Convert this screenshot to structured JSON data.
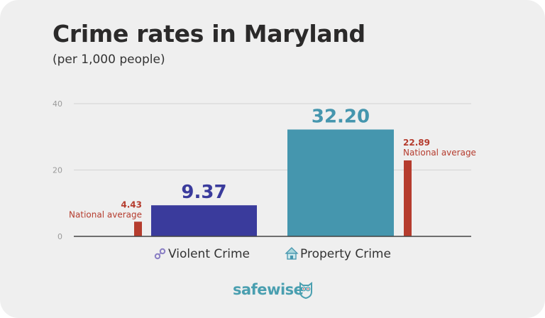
{
  "chart_data": {
    "type": "bar",
    "title": "Crime rates in Maryland",
    "subtitle": "(per 1,000 people)",
    "xlabel": "",
    "ylabel": "",
    "ylim": [
      0,
      40
    ],
    "yticks": [
      0,
      20,
      40
    ],
    "ytick_labels": [
      "0",
      "20",
      "40"
    ],
    "grid": true,
    "categories": [
      "Violent Crime",
      "Property Crime"
    ],
    "category_icons": [
      "handcuffs-icon",
      "house-icon"
    ],
    "series": [
      {
        "name": "Maryland",
        "values": [
          9.37,
          32.2
        ],
        "value_labels": [
          "9.37",
          "32.20"
        ],
        "colors": [
          "#3a3b9c",
          "#4596ae"
        ]
      },
      {
        "name": "National average",
        "values": [
          4.43,
          22.89
        ],
        "value_labels": [
          "4.43",
          "22.89"
        ],
        "color": "#b53c2e"
      }
    ],
    "annotations": [
      {
        "text": "National average",
        "value": "4.43",
        "category": "Violent Crime",
        "placement": "left"
      },
      {
        "text": "National average",
        "value": "22.89",
        "category": "Property Crime",
        "placement": "right"
      }
    ]
  },
  "brand": {
    "name_part1": "safe",
    "name_part2": "wise",
    "icon": "owl-icon",
    "color": "#4a9fb0"
  },
  "colors": {
    "background": "#efefef",
    "grid": "#d3d3d3",
    "axis": "#444444",
    "tick_text": "#9a9a9a",
    "national": "#b53c2e"
  }
}
